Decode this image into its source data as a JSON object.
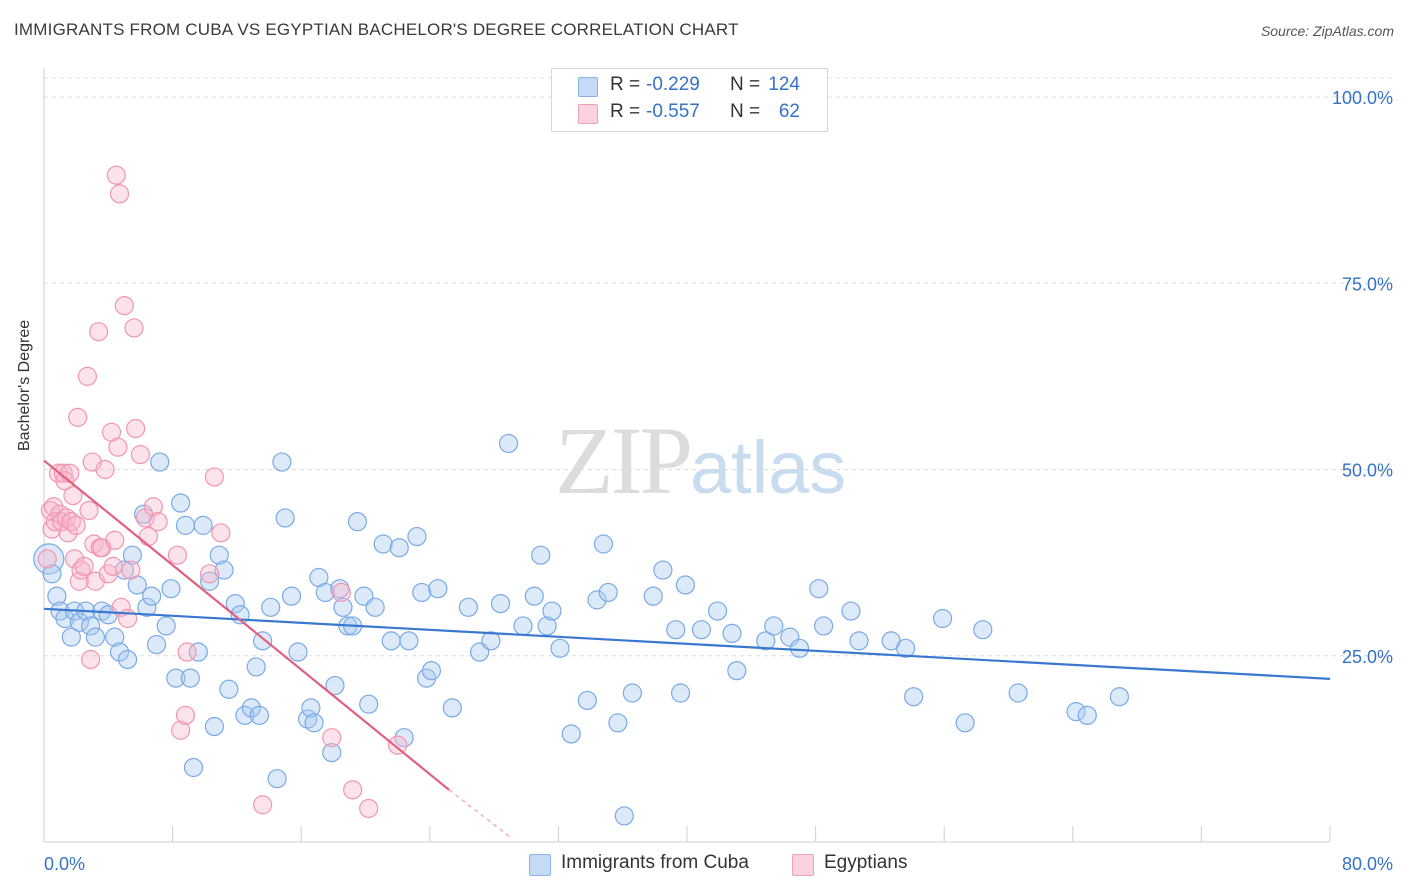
{
  "title": "IMMIGRANTS FROM CUBA VS EGYPTIAN BACHELOR'S DEGREE CORRELATION CHART",
  "source": "Source: ZipAtlas.com",
  "watermark": {
    "part1": "ZIP",
    "part2": "atlas"
  },
  "legend": {
    "rows": [
      {
        "r_label": "R =",
        "r_value": "-0.229",
        "n_label": "N =",
        "n_value": "124",
        "color": "#a8c8ef"
      },
      {
        "r_label": "R =",
        "r_value": "-0.557",
        "n_label": "N =",
        "n_value": "62",
        "color": "#f7b7cb"
      }
    ]
  },
  "chart_data": {
    "type": "scatter",
    "title": "IMMIGRANTS FROM CUBA VS EGYPTIAN BACHELOR'S DEGREE CORRELATION CHART",
    "xlabel": "",
    "ylabel": "Bachelor's Degree",
    "xlim": [
      0,
      80
    ],
    "ylim": [
      0,
      105
    ],
    "x_tick_labels": [
      "0.0%",
      "80.0%"
    ],
    "y_ticks": [
      25,
      50,
      75,
      100
    ],
    "y_tick_labels": [
      "25.0%",
      "50.0%",
      "75.0%",
      "100.0%"
    ],
    "grid": true,
    "series": [
      {
        "name": "Immigrants from Cuba",
        "color": "#6fa3e6",
        "line_color": "#3a78cf",
        "trend": {
          "x": [
            0,
            80
          ],
          "y": [
            31.3,
            21.9
          ]
        },
        "points": [
          [
            0.3,
            38
          ],
          [
            0.5,
            36
          ],
          [
            0.8,
            33
          ],
          [
            1.0,
            31
          ],
          [
            1.3,
            30
          ],
          [
            1.7,
            27.5
          ],
          [
            1.9,
            31
          ],
          [
            2.2,
            29.5
          ],
          [
            2.6,
            31
          ],
          [
            2.9,
            29
          ],
          [
            3.2,
            27.5
          ],
          [
            3.6,
            31
          ],
          [
            4.0,
            30.5
          ],
          [
            4.4,
            27.5
          ],
          [
            4.7,
            25.5
          ],
          [
            5.0,
            36.5
          ],
          [
            5.2,
            24.5
          ],
          [
            5.5,
            38.5
          ],
          [
            5.8,
            34.5
          ],
          [
            6.2,
            44
          ],
          [
            6.4,
            31.5
          ],
          [
            6.7,
            33
          ],
          [
            7.0,
            26.5
          ],
          [
            7.2,
            51
          ],
          [
            7.6,
            29
          ],
          [
            7.9,
            34
          ],
          [
            8.2,
            22
          ],
          [
            8.5,
            45.5
          ],
          [
            8.8,
            42.5
          ],
          [
            9.1,
            22
          ],
          [
            9.3,
            10
          ],
          [
            9.6,
            25.5
          ],
          [
            9.9,
            42.5
          ],
          [
            10.3,
            35
          ],
          [
            10.6,
            15.5
          ],
          [
            10.9,
            38.5
          ],
          [
            11.2,
            36.5
          ],
          [
            11.5,
            20.5
          ],
          [
            11.9,
            32
          ],
          [
            12.2,
            30.5
          ],
          [
            12.5,
            17
          ],
          [
            12.9,
            18
          ],
          [
            13.2,
            23.5
          ],
          [
            13.4,
            17
          ],
          [
            13.6,
            27
          ],
          [
            14.1,
            31.5
          ],
          [
            14.5,
            8.5
          ],
          [
            14.8,
            51
          ],
          [
            15.0,
            43.5
          ],
          [
            15.4,
            33
          ],
          [
            15.8,
            25.5
          ],
          [
            16.4,
            16.5
          ],
          [
            16.6,
            18
          ],
          [
            16.8,
            16
          ],
          [
            17.1,
            35.5
          ],
          [
            17.5,
            33.5
          ],
          [
            17.9,
            12
          ],
          [
            18.1,
            21
          ],
          [
            18.4,
            34
          ],
          [
            18.6,
            31.5
          ],
          [
            18.9,
            29
          ],
          [
            19.2,
            29
          ],
          [
            19.5,
            43
          ],
          [
            19.9,
            33
          ],
          [
            20.2,
            18.5
          ],
          [
            20.6,
            31.5
          ],
          [
            21.1,
            40
          ],
          [
            21.6,
            27
          ],
          [
            22.1,
            39.5
          ],
          [
            22.4,
            14
          ],
          [
            22.7,
            27
          ],
          [
            23.2,
            41
          ],
          [
            23.5,
            33.5
          ],
          [
            23.8,
            22
          ],
          [
            24.1,
            23
          ],
          [
            24.5,
            34
          ],
          [
            25.4,
            18
          ],
          [
            26.4,
            31.5
          ],
          [
            27.1,
            25.5
          ],
          [
            27.8,
            27
          ],
          [
            28.4,
            32
          ],
          [
            28.9,
            53.5
          ],
          [
            29.8,
            29
          ],
          [
            30.5,
            33
          ],
          [
            30.9,
            38.5
          ],
          [
            31.3,
            29
          ],
          [
            31.6,
            31
          ],
          [
            32.1,
            26
          ],
          [
            32.8,
            14.5
          ],
          [
            33.8,
            19
          ],
          [
            34.4,
            32.5
          ],
          [
            34.8,
            40
          ],
          [
            35.1,
            33.5
          ],
          [
            35.7,
            16
          ],
          [
            36.1,
            3.5
          ],
          [
            36.6,
            20
          ],
          [
            37.9,
            33
          ],
          [
            38.5,
            36.5
          ],
          [
            39.3,
            28.5
          ],
          [
            39.6,
            20
          ],
          [
            39.9,
            34.5
          ],
          [
            40.9,
            28.5
          ],
          [
            41.9,
            31
          ],
          [
            42.8,
            28
          ],
          [
            43.1,
            23
          ],
          [
            44.9,
            27
          ],
          [
            45.4,
            29
          ],
          [
            46.4,
            27.5
          ],
          [
            47.0,
            26
          ],
          [
            48.2,
            34
          ],
          [
            48.5,
            29
          ],
          [
            50.2,
            31
          ],
          [
            50.7,
            27
          ],
          [
            52.7,
            27
          ],
          [
            53.6,
            26
          ],
          [
            54.1,
            19.5
          ],
          [
            55.9,
            30
          ],
          [
            57.3,
            16
          ],
          [
            58.4,
            28.5
          ],
          [
            60.6,
            20
          ],
          [
            64.2,
            17.5
          ],
          [
            64.9,
            17
          ],
          [
            66.9,
            19.5
          ]
        ]
      },
      {
        "name": "Egyptians",
        "color": "#f28cab",
        "line_color": "#e0607f",
        "trend": {
          "x": [
            0,
            25.2
          ],
          "y": [
            51.2,
            7
          ],
          "dash_to": [
            29.1,
            0.5
          ]
        },
        "points": [
          [
            0.2,
            38
          ],
          [
            0.4,
            44.5
          ],
          [
            0.5,
            42
          ],
          [
            0.6,
            45
          ],
          [
            0.7,
            43
          ],
          [
            0.9,
            49.5
          ],
          [
            1.0,
            44
          ],
          [
            1.1,
            43
          ],
          [
            1.2,
            49.5
          ],
          [
            1.3,
            48.5
          ],
          [
            1.4,
            43.5
          ],
          [
            1.5,
            41.5
          ],
          [
            1.6,
            49.5
          ],
          [
            1.7,
            43
          ],
          [
            1.8,
            46.5
          ],
          [
            1.9,
            38
          ],
          [
            2.0,
            42.5
          ],
          [
            2.1,
            57
          ],
          [
            2.2,
            35
          ],
          [
            2.3,
            36.5
          ],
          [
            2.5,
            37
          ],
          [
            2.7,
            62.5
          ],
          [
            2.8,
            44.5
          ],
          [
            2.9,
            24.5
          ],
          [
            3.0,
            51
          ],
          [
            3.1,
            40
          ],
          [
            3.2,
            35
          ],
          [
            3.4,
            68.5
          ],
          [
            3.5,
            39.5
          ],
          [
            3.6,
            39.5
          ],
          [
            3.8,
            50
          ],
          [
            4.0,
            36
          ],
          [
            4.2,
            55
          ],
          [
            4.3,
            37
          ],
          [
            4.4,
            40.5
          ],
          [
            4.5,
            89.5
          ],
          [
            4.6,
            53
          ],
          [
            4.7,
            87
          ],
          [
            4.8,
            31.5
          ],
          [
            5.0,
            72
          ],
          [
            5.2,
            30
          ],
          [
            5.4,
            36.5
          ],
          [
            5.6,
            69
          ],
          [
            5.7,
            55.5
          ],
          [
            6.0,
            52
          ],
          [
            6.3,
            43.5
          ],
          [
            6.5,
            41
          ],
          [
            6.8,
            45
          ],
          [
            7.1,
            43
          ],
          [
            8.3,
            38.5
          ],
          [
            8.5,
            15
          ],
          [
            8.8,
            17
          ],
          [
            8.9,
            25.5
          ],
          [
            10.3,
            36
          ],
          [
            10.6,
            49
          ],
          [
            11.0,
            41.5
          ],
          [
            13.6,
            5
          ],
          [
            17.9,
            14
          ],
          [
            18.5,
            33.5
          ],
          [
            19.2,
            7
          ],
          [
            20.2,
            4.5
          ],
          [
            22.0,
            13
          ]
        ]
      }
    ]
  }
}
